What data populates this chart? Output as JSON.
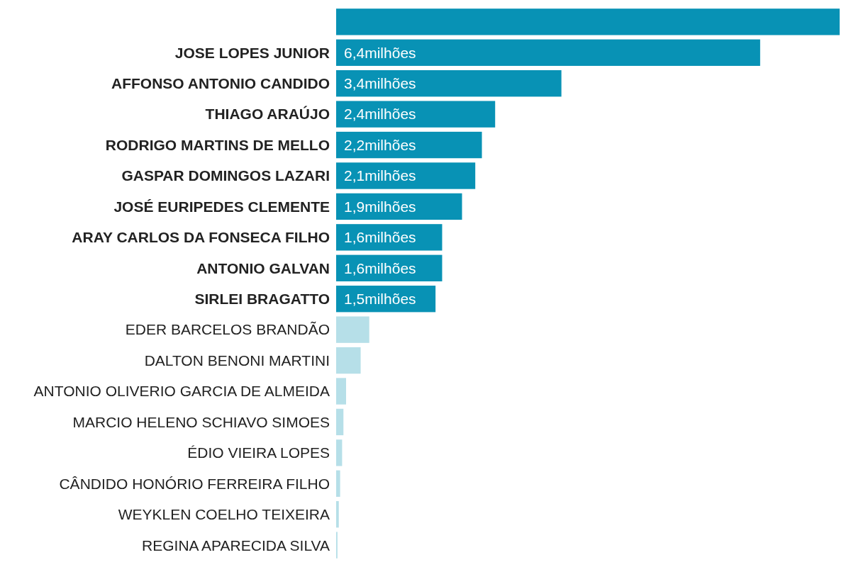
{
  "chart_data": {
    "type": "bar",
    "orientation": "horizontal",
    "categories": [
      null,
      "JOSE LOPES JUNIOR",
      "AFFONSO ANTONIO CANDIDO",
      "THIAGO ARAÚJO",
      "RODRIGO MARTINS DE MELLO",
      "GASPAR DOMINGOS LAZARI",
      "JOSÉ EURIPEDES CLEMENTE",
      "ARAY CARLOS DA FONSECA FILHO",
      "ANTONIO GALVAN",
      "SIRLEI BRAGATTO",
      "EDER BARCELOS BRANDÃO",
      "DALTON BENONI MARTINI",
      "ANTONIO OLIVERIO GARCIA DE ALMEIDA",
      "MARCIO HELENO SCHIAVO SIMOES",
      "ÉDIO VIEIRA LOPES",
      "CÂNDIDO HONÓRIO FERREIRA FILHO",
      "WEYKLEN COELHO TEIXEIRA",
      "REGINA APARECIDA SILVA"
    ],
    "values": [
      7.6,
      6.4,
      3.4,
      2.4,
      2.2,
      2.1,
      1.9,
      1.6,
      1.6,
      1.5,
      0.5,
      0.37,
      0.15,
      0.11,
      0.09,
      0.06,
      0.04,
      0.02
    ],
    "colors": [
      "#0892b5",
      "#0892b5",
      "#0892b5",
      "#0892b5",
      "#0892b5",
      "#0892b5",
      "#0892b5",
      "#0892b5",
      "#0892b5",
      "#0892b5",
      "#b6dfe8",
      "#b6dfe8",
      "#b6dfe8",
      "#b6dfe8",
      "#b6dfe8",
      "#b6dfe8",
      "#b6dfe8",
      "#b6dfe8"
    ],
    "value_labels": [
      null,
      "6,4milhões",
      "3,4milhões",
      "2,4milhões",
      "2,2milhões",
      "2,1milhões",
      "1,9milhões",
      "1,6milhões",
      "1,6milhões",
      "1,5milhões",
      null,
      null,
      null,
      null,
      null,
      null,
      null,
      null
    ]
  }
}
